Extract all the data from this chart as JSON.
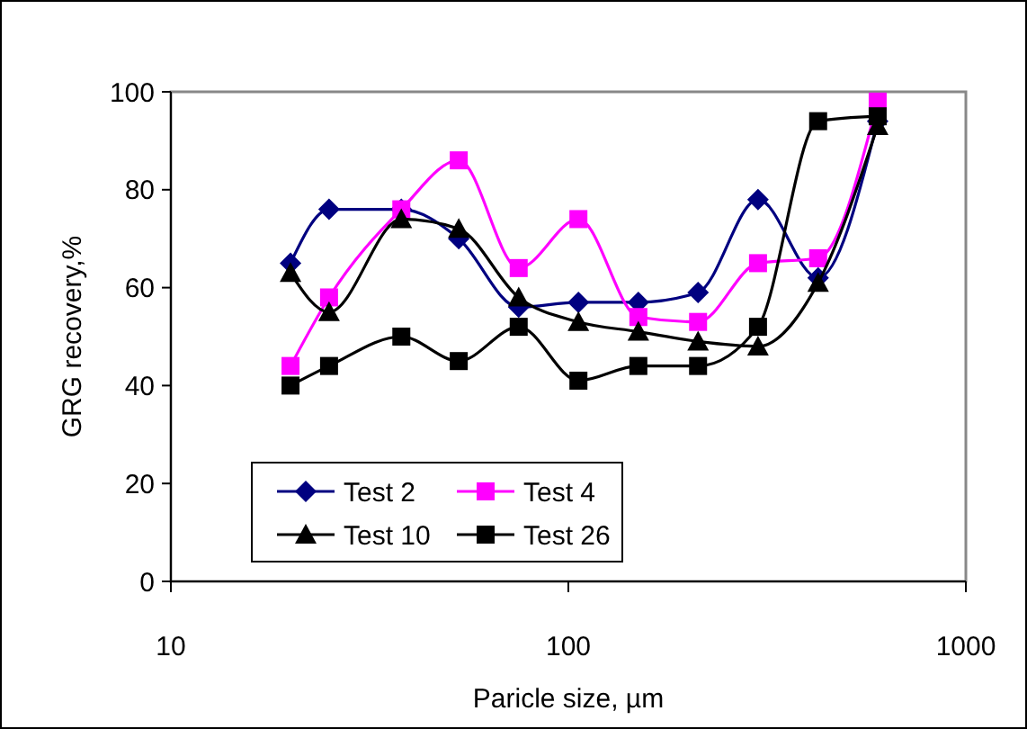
{
  "chart_data": {
    "type": "line",
    "xlabel": "Paricle size, µm",
    "ylabel": "GRG recovery,%",
    "log": "x",
    "xlim": [
      10,
      1000
    ],
    "xticks": [
      10,
      100,
      1000
    ],
    "ylim": [
      0,
      100
    ],
    "yticks": [
      0,
      20,
      40,
      60,
      80,
      100
    ],
    "grid": false,
    "legend": "bottom",
    "x": [
      20,
      25,
      38,
      53,
      75,
      106,
      150,
      212,
      300,
      425,
      600
    ],
    "series": [
      {
        "name": "Test 2",
        "color": "#000080",
        "marker": "diamond",
        "values": [
          65,
          76,
          76,
          70,
          56,
          57,
          57,
          59,
          78,
          62,
          94
        ]
      },
      {
        "name": "Test 4",
        "color": "#ff00ff",
        "marker": "square",
        "values": [
          44,
          58,
          76,
          86,
          64,
          74,
          54,
          53,
          65,
          66,
          98
        ]
      },
      {
        "name": "Test 10",
        "color": "#000000",
        "marker": "triangle",
        "values": [
          63,
          55,
          74,
          72,
          58,
          53,
          51,
          49,
          48,
          61,
          93
        ]
      },
      {
        "name": "Test 26",
        "color": "#000000",
        "marker": "square",
        "values": [
          40,
          44,
          50,
          45,
          52,
          41,
          44,
          44,
          52,
          94,
          95
        ]
      }
    ]
  }
}
